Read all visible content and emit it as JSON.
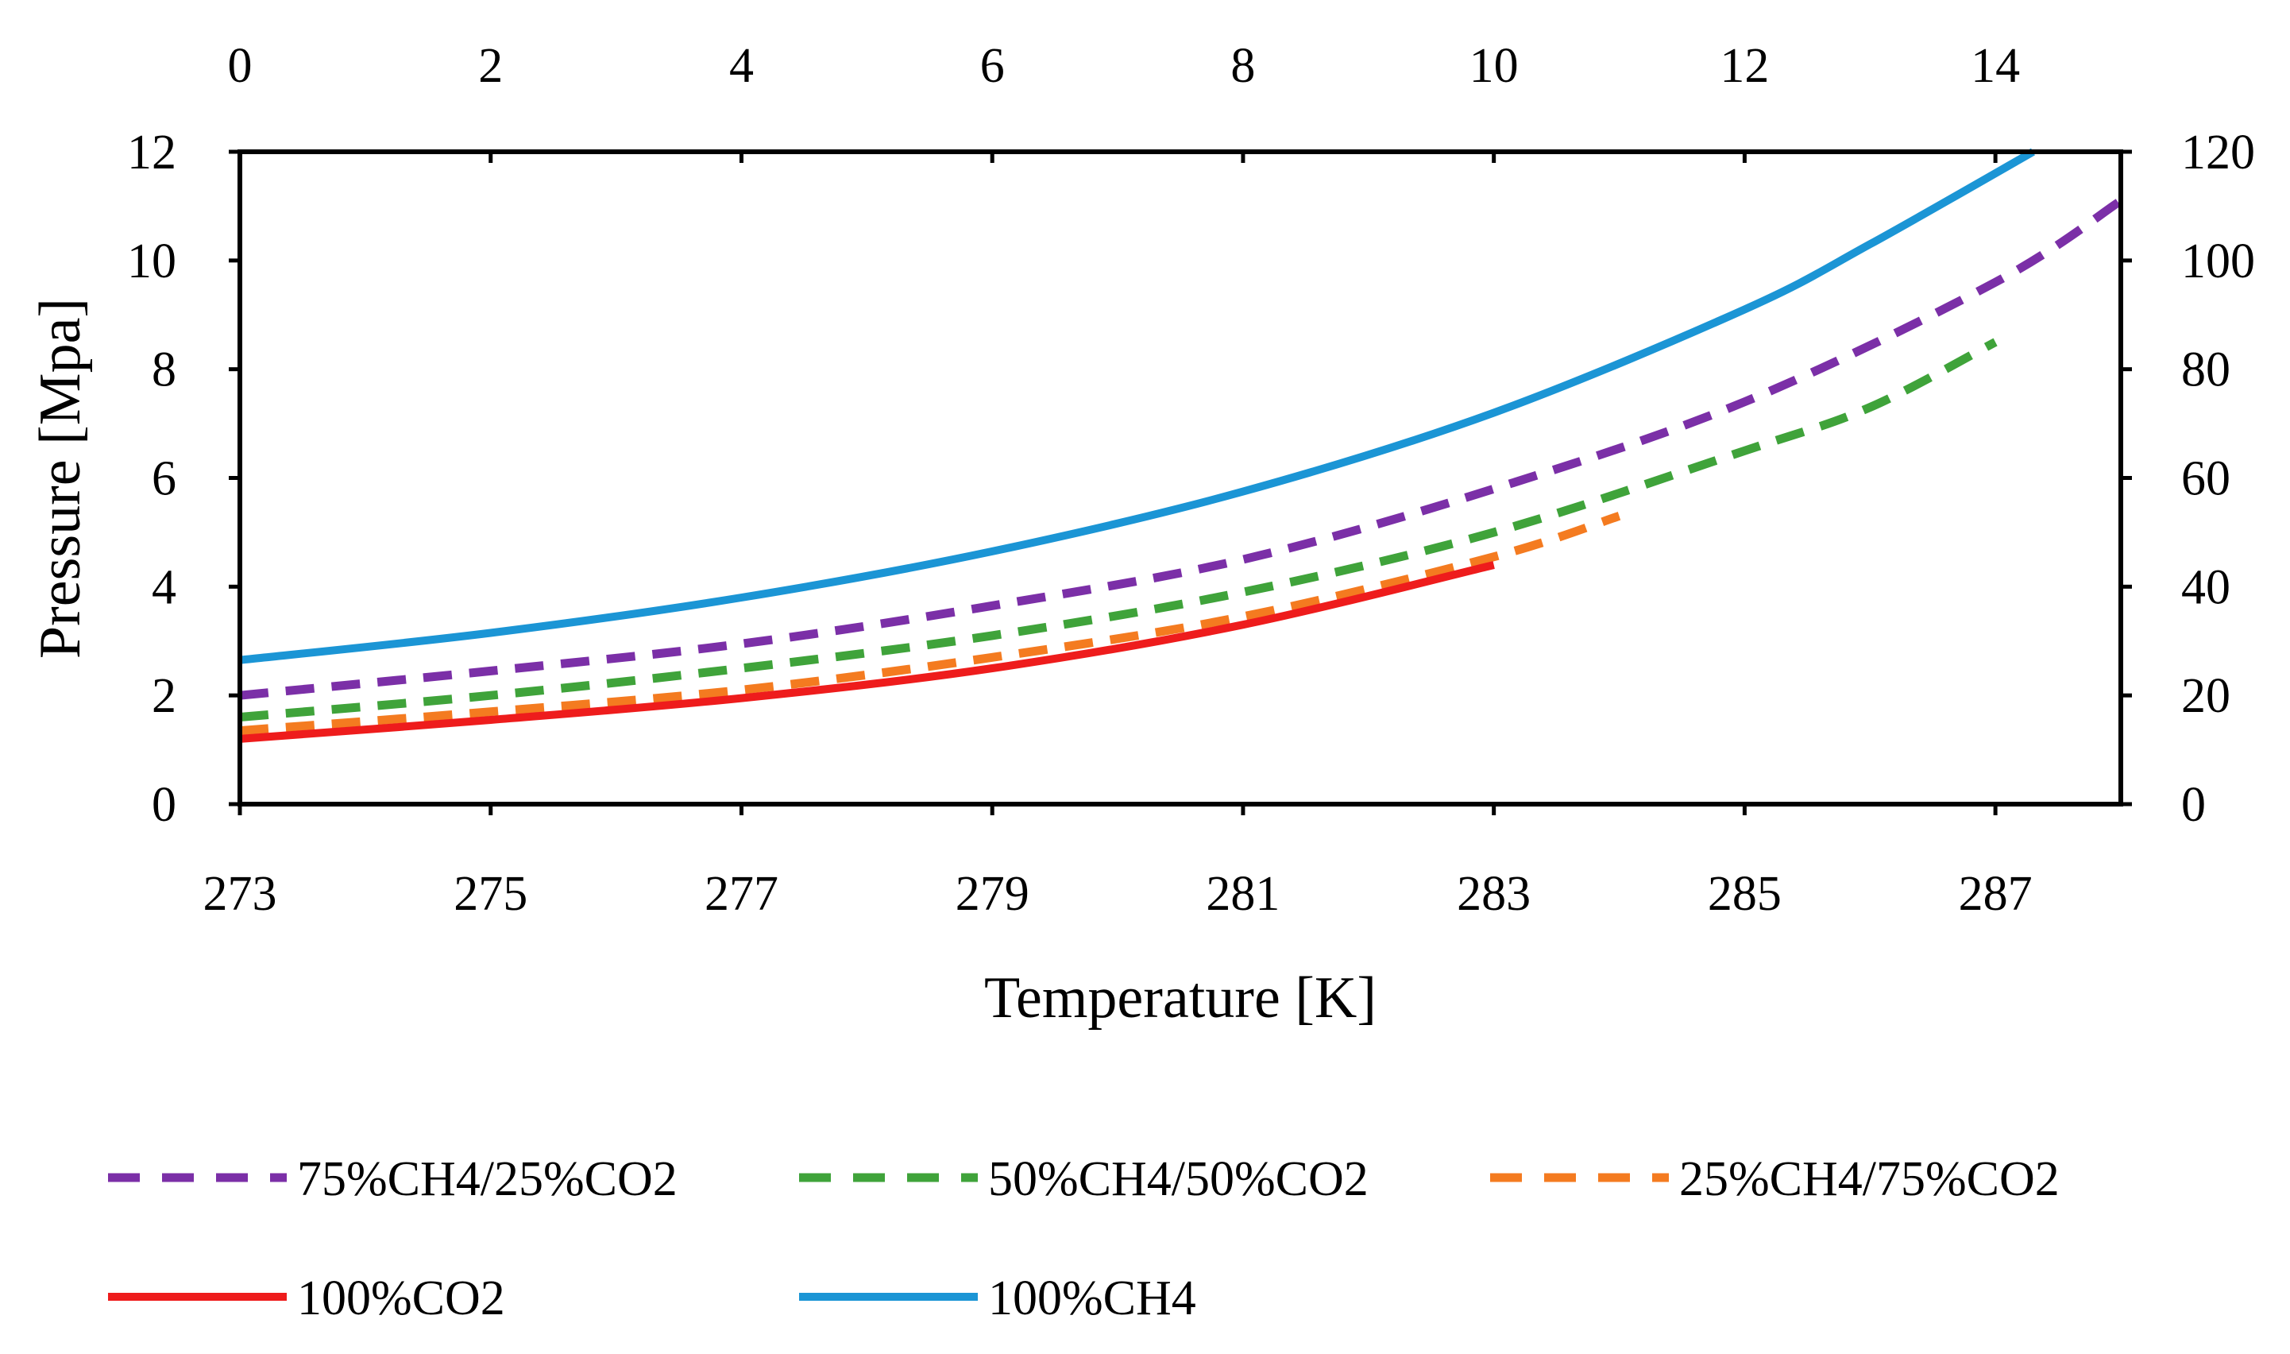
{
  "chart_data": {
    "type": "line",
    "title": "",
    "xlabel": "Temperature [K]",
    "ylabel": "Pressure [Mpa]",
    "xlim": [
      273,
      288
    ],
    "ylim": [
      0,
      12
    ],
    "xticks": [
      "273",
      "275",
      "277",
      "279",
      "281",
      "283",
      "285",
      "287"
    ],
    "yticks": [
      "0",
      "2",
      "4",
      "6",
      "8",
      "10",
      "12"
    ],
    "secondary_x": {
      "range": [
        0,
        15
      ],
      "ticks": [
        "0",
        "2",
        "4",
        "6",
        "8",
        "10",
        "12",
        "14"
      ]
    },
    "secondary_y": {
      "range": [
        0,
        120
      ],
      "ticks": [
        "0",
        "20",
        "40",
        "60",
        "80",
        "100",
        "120"
      ]
    },
    "grid": false,
    "legend_position": "bottom",
    "series": [
      {
        "name": "75%CH4/25%CO2",
        "color": "#7B2FA7",
        "style": "dashed",
        "x": [
          273,
          275,
          277,
          279,
          281,
          283,
          285,
          287,
          288
        ],
        "y": [
          2.0,
          2.45,
          2.95,
          3.65,
          4.5,
          5.8,
          7.4,
          9.6,
          11.1
        ]
      },
      {
        "name": "50%CH4/50%CO2",
        "color": "#3FA33A",
        "style": "dashed",
        "x": [
          273,
          275,
          277,
          279,
          281,
          283,
          285,
          286,
          287
        ],
        "y": [
          1.6,
          2.0,
          2.5,
          3.1,
          3.9,
          5.0,
          6.5,
          7.3,
          8.5
        ]
      },
      {
        "name": "25%CH4/75%CO2",
        "color": "#F47B20",
        "style": "dashed",
        "x": [
          273,
          275,
          277,
          279,
          281,
          283,
          284
        ],
        "y": [
          1.35,
          1.7,
          2.1,
          2.7,
          3.45,
          4.55,
          5.3
        ]
      },
      {
        "name": "100%CO2",
        "color": "#EE1C1C",
        "style": "solid",
        "x": [
          273,
          275,
          277,
          279,
          281,
          283
        ],
        "y": [
          1.2,
          1.55,
          1.95,
          2.5,
          3.3,
          4.4
        ]
      },
      {
        "name": "100%CH4",
        "color": "#1B95D5",
        "style": "solid",
        "x": [
          273,
          275,
          277,
          279,
          281,
          283,
          285,
          286,
          287.3
        ],
        "y": [
          2.65,
          3.15,
          3.8,
          4.65,
          5.75,
          7.2,
          9.1,
          10.3,
          12.0
        ]
      }
    ]
  }
}
